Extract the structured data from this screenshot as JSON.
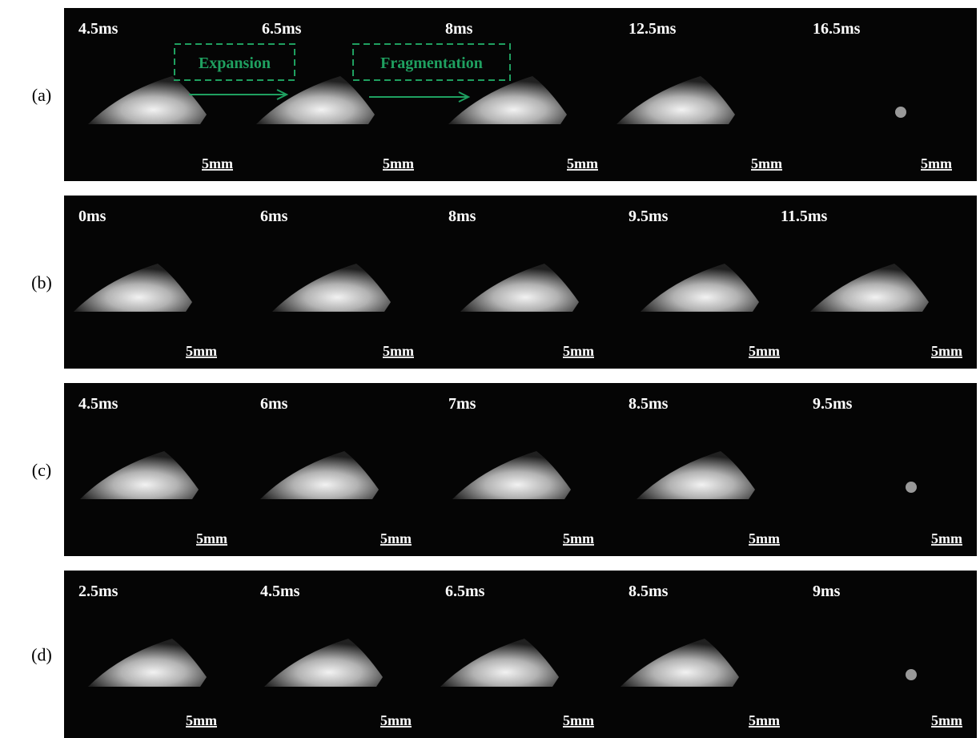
{
  "rows": [
    {
      "label": "(a)",
      "frames": [
        {
          "time": "4.5ms",
          "scale": "5mm"
        },
        {
          "time": "6.5ms",
          "scale": "5mm"
        },
        {
          "time": "8ms",
          "scale": "5mm"
        },
        {
          "time": "12.5ms",
          "scale": "5mm"
        },
        {
          "time": "16.5ms",
          "scale": "5mm"
        }
      ]
    },
    {
      "label": "(b)",
      "frames": [
        {
          "time": "0ms",
          "scale": "5mm"
        },
        {
          "time": "6ms",
          "scale": "5mm"
        },
        {
          "time": "8ms",
          "scale": "5mm"
        },
        {
          "time": "9.5ms",
          "scale": "5mm"
        },
        {
          "time": "11.5ms",
          "scale": "5mm"
        }
      ]
    },
    {
      "label": "(c)",
      "frames": [
        {
          "time": "4.5ms",
          "scale": "5mm"
        },
        {
          "time": "6ms",
          "scale": "5mm"
        },
        {
          "time": "7ms",
          "scale": "5mm"
        },
        {
          "time": "8.5ms",
          "scale": "5mm"
        },
        {
          "time": "9.5ms",
          "scale": "5mm"
        }
      ]
    },
    {
      "label": "(d)",
      "frames": [
        {
          "time": "2.5ms",
          "scale": "5mm"
        },
        {
          "time": "4.5ms",
          "scale": "5mm"
        },
        {
          "time": "6.5ms",
          "scale": "5mm"
        },
        {
          "time": "8.5ms",
          "scale": "5mm"
        },
        {
          "time": "9ms",
          "scale": "5mm"
        }
      ]
    }
  ],
  "annotations": [
    {
      "text": "Expansion"
    },
    {
      "text": "Fragmentation"
    }
  ]
}
